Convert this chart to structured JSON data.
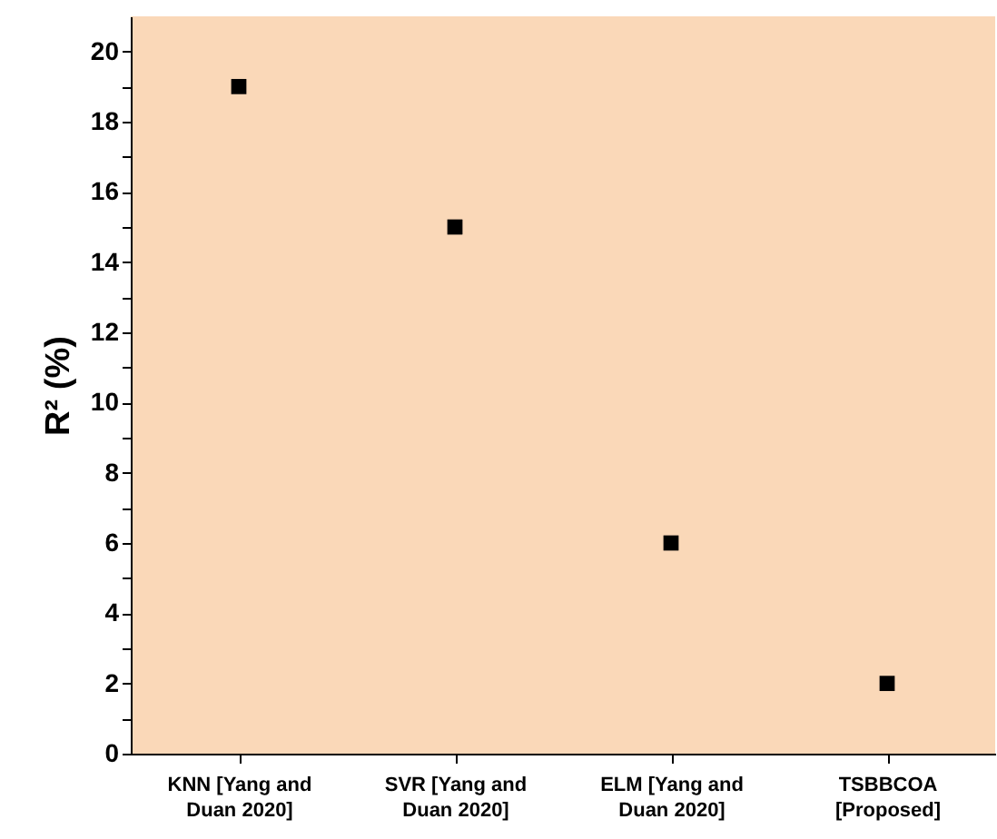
{
  "chart_data": {
    "type": "scatter",
    "ylabel": "R² (%)",
    "categories": [
      "KNN [Yang and Duan 2020]",
      "SVR [Yang and Duan 2020]",
      "ELM [Yang and Duan 2020]",
      "TSBBCOA [Proposed]"
    ],
    "series": [
      {
        "color": "#000000",
        "values": [
          19,
          15,
          6,
          2
        ]
      }
    ],
    "ylim": [
      0,
      21
    ],
    "yticks": [
      0,
      {
        "value": 1,
        "label": null
      },
      2,
      {
        "value": 3,
        "label": null
      },
      4,
      {
        "value": 5,
        "label": null
      },
      6,
      {
        "value": 7,
        "label": null
      },
      8,
      {
        "value": 9,
        "label": null
      },
      10,
      {
        "value": 11,
        "label": null
      },
      12,
      {
        "value": 13,
        "label": null
      },
      14,
      {
        "value": 15,
        "label": null
      },
      16,
      {
        "value": 17,
        "label": null
      },
      18,
      {
        "value": 19,
        "label": null
      },
      20
    ],
    "marker": "square",
    "grid": false
  }
}
